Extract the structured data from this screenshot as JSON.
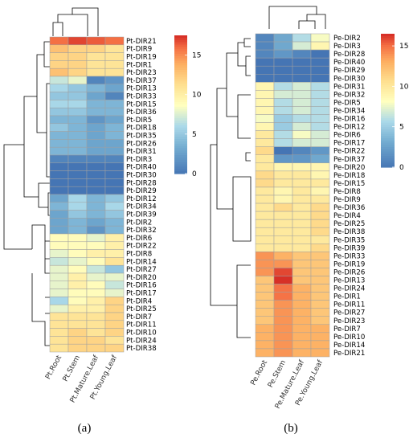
{
  "chart_data": [
    {
      "type": "heatmap",
      "panel_label": "(a)",
      "columns": [
        "Pt.Root",
        "Pt.Stem",
        "Pt.Mature.Leaf",
        "Pt.Young.Leaf"
      ],
      "rows": [
        "Pt-DIR21",
        "Pt-DIR9",
        "Pt-DIR19",
        "Pt-DIR1",
        "Pt-DIR23",
        "Pt-DIR37",
        "Pt-DIR13",
        "Pt-DIR33",
        "Pt-DIR15",
        "Pt-DIR36",
        "Pt-DIR5",
        "Pt-DIR18",
        "Pt-DIR35",
        "Pt-DIR26",
        "Pt-DIR31",
        "Pt-DIR3",
        "Pt-DIR40",
        "Pt-DIR30",
        "Pt-DIR28",
        "Pt-DIR29",
        "Pt-DIR12",
        "Pt-DIR34",
        "Pt-DIR39",
        "Pt-DIR2",
        "Pt-DIR32",
        "Pt-DIR6",
        "Pt-DIR22",
        "Pt-DIR8",
        "Pt-DIR14",
        "Pt-DIR27",
        "Pt-DIR20",
        "Pt-DIR16",
        "Pt-DIR17",
        "Pt-DIR4",
        "Pt-DIR25",
        "Pt-DIR7",
        "Pt-DIR11",
        "Pt-DIR10",
        "Pt-DIR24",
        "Pt-DIR38"
      ],
      "values": [
        [
          16,
          17,
          16.5,
          16
        ],
        [
          13,
          12,
          12,
          11
        ],
        [
          12,
          12,
          11,
          11
        ],
        [
          12,
          12,
          11,
          11
        ],
        [
          13,
          12,
          11,
          11
        ],
        [
          7,
          8,
          1,
          2
        ],
        [
          6,
          5,
          4,
          3
        ],
        [
          5,
          5,
          3,
          1
        ],
        [
          6,
          6,
          4,
          4
        ],
        [
          5,
          5,
          4,
          4
        ],
        [
          4,
          4,
          2,
          3
        ],
        [
          5,
          4,
          3,
          4
        ],
        [
          4,
          4,
          3,
          4
        ],
        [
          4,
          4,
          3,
          3
        ],
        [
          4,
          4,
          3,
          3
        ],
        [
          1,
          1,
          1,
          1
        ],
        [
          0,
          0,
          0,
          0
        ],
        [
          0,
          0,
          0,
          0
        ],
        [
          0,
          0,
          0,
          0
        ],
        [
          0,
          0,
          0,
          0
        ],
        [
          3,
          6,
          4,
          5
        ],
        [
          4,
          6,
          4,
          6
        ],
        [
          3,
          5,
          4,
          5
        ],
        [
          3,
          4,
          3,
          4
        ],
        [
          3,
          4,
          2,
          4
        ],
        [
          9,
          9,
          8,
          10
        ],
        [
          9,
          9,
          9,
          10
        ],
        [
          8,
          9,
          10,
          10
        ],
        [
          7,
          8,
          9,
          11
        ],
        [
          8,
          9,
          7,
          5
        ],
        [
          8,
          10,
          8,
          8
        ],
        [
          8,
          10,
          9,
          7
        ],
        [
          8,
          9,
          9,
          8
        ],
        [
          6,
          9,
          10,
          12
        ],
        [
          8,
          10,
          10,
          12
        ],
        [
          11,
          11,
          11,
          12
        ],
        [
          11,
          11,
          11,
          12
        ],
        [
          11,
          12,
          11,
          12
        ],
        [
          11,
          12,
          12,
          11
        ],
        [
          11,
          12,
          12,
          12
        ]
      ],
      "colorbar_ticks": [
        0,
        5,
        10,
        15
      ],
      "color_range": [
        0,
        17.5
      ]
    },
    {
      "type": "heatmap",
      "panel_label": "(b)",
      "columns": [
        "Pe.Root",
        "Pe.Stem",
        "Pe.Mature.Leaf",
        "Pe.Young.Leaf"
      ],
      "rows": [
        "Pe-DIR2",
        "Pe-DIR3",
        "Pe-DIR28",
        "Pe-DIR40",
        "Pe-DIR29",
        "Pe-DIR30",
        "Pe-DIR31",
        "Pe-DIR32",
        "Pe-DIR5",
        "Pe-DIR34",
        "Pe-DIR16",
        "Pe-DIR12",
        "Pe-DIR6",
        "Pe-DIR17",
        "Pe-DIR22",
        "Pe-DIR37",
        "Pe-DIR20",
        "Pe-DIR18",
        "Pe-DIR15",
        "Pe-DIR8",
        "Pe-DIR9",
        "Pe-DIR36",
        "Pe-DIR4",
        "Pe-DIR25",
        "Pe-DIR38",
        "Pe-DIR35",
        "Pe-DIR39",
        "Pe-DIR33",
        "Pe-DIR19",
        "Pe-DIR26",
        "Pe-DIR13",
        "Pe-DIR24",
        "Pe-DIR1",
        "Pe-DIR11",
        "Pe-DIR27",
        "Pe-DIR23",
        "Pe-DIR7",
        "Pe-DIR10",
        "Pe-DIR14",
        "Pe-DIR21"
      ],
      "values": [
        [
          1,
          3,
          6,
          8
        ],
        [
          1,
          3,
          7,
          9
        ],
        [
          1,
          2,
          1,
          0
        ],
        [
          0,
          0,
          0,
          0
        ],
        [
          0,
          0,
          0,
          0
        ],
        [
          0,
          0,
          0,
          0
        ],
        [
          9,
          6,
          7,
          6
        ],
        [
          9,
          7,
          7,
          6
        ],
        [
          9,
          6,
          7,
          6
        ],
        [
          9,
          6,
          7,
          6
        ],
        [
          8,
          5,
          6,
          6
        ],
        [
          9,
          5,
          7,
          6
        ],
        [
          10,
          6,
          8,
          7
        ],
        [
          10,
          6,
          7,
          7
        ],
        [
          11,
          0,
          1,
          2
        ],
        [
          10,
          2,
          2,
          3
        ],
        [
          10,
          9,
          9,
          9
        ],
        [
          11,
          10,
          10,
          9
        ],
        [
          11,
          10,
          10,
          10
        ],
        [
          10,
          9,
          10,
          9
        ],
        [
          10,
          9,
          10,
          10
        ],
        [
          10,
          11,
          10,
          11
        ],
        [
          10,
          10,
          10,
          11
        ],
        [
          10,
          10,
          10,
          11
        ],
        [
          10,
          10,
          10,
          11
        ],
        [
          10,
          10,
          10,
          10
        ],
        [
          10,
          10,
          10,
          11
        ],
        [
          14,
          13,
          12,
          12
        ],
        [
          14,
          14,
          12,
          12
        ],
        [
          14,
          16,
          12,
          12
        ],
        [
          12,
          17,
          12,
          12
        ],
        [
          12,
          15,
          13,
          12
        ],
        [
          12,
          15,
          13,
          12
        ],
        [
          12,
          14,
          13,
          12
        ],
        [
          12,
          14,
          13,
          12
        ],
        [
          12,
          14,
          13,
          12
        ],
        [
          13,
          14,
          13,
          13
        ],
        [
          13,
          14,
          13,
          13
        ],
        [
          13,
          14,
          13,
          13
        ],
        [
          13,
          14,
          13,
          13
        ]
      ],
      "colorbar_ticks": [
        0,
        5,
        10,
        15
      ],
      "color_range": [
        0,
        16.5
      ]
    }
  ]
}
